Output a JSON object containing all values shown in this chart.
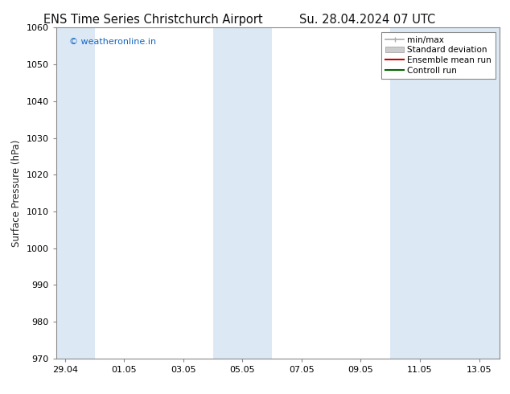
{
  "title_left": "ENS Time Series Christchurch Airport",
  "title_right": "Su. 28.04.2024 07 UTC",
  "ylabel": "Surface Pressure (hPa)",
  "ylim": [
    970,
    1060
  ],
  "yticks": [
    970,
    980,
    990,
    1000,
    1010,
    1020,
    1030,
    1040,
    1050,
    1060
  ],
  "xtick_labels": [
    "29.04",
    "01.05",
    "03.05",
    "05.05",
    "07.05",
    "09.05",
    "11.05",
    "13.05"
  ],
  "watermark": "© weatheronline.in",
  "watermark_color": "#1565C0",
  "background_color": "#ffffff",
  "plot_bg_color": "#ffffff",
  "shaded_color": "#dce9f5",
  "spine_color": "#888888",
  "tick_color": "#444444",
  "legend_entries": [
    {
      "label": "min/max",
      "color": "#aaaaaa",
      "lw": 1.2
    },
    {
      "label": "Standard deviation",
      "color": "#cccccc",
      "lw": 8
    },
    {
      "label": "Ensemble mean run",
      "color": "#cc0000",
      "lw": 1.5
    },
    {
      "label": "Controll run",
      "color": "#006600",
      "lw": 1.5
    }
  ],
  "title_fontsize": 10.5,
  "ylabel_fontsize": 8.5,
  "tick_fontsize": 8,
  "watermark_fontsize": 8,
  "legend_fontsize": 7.5
}
